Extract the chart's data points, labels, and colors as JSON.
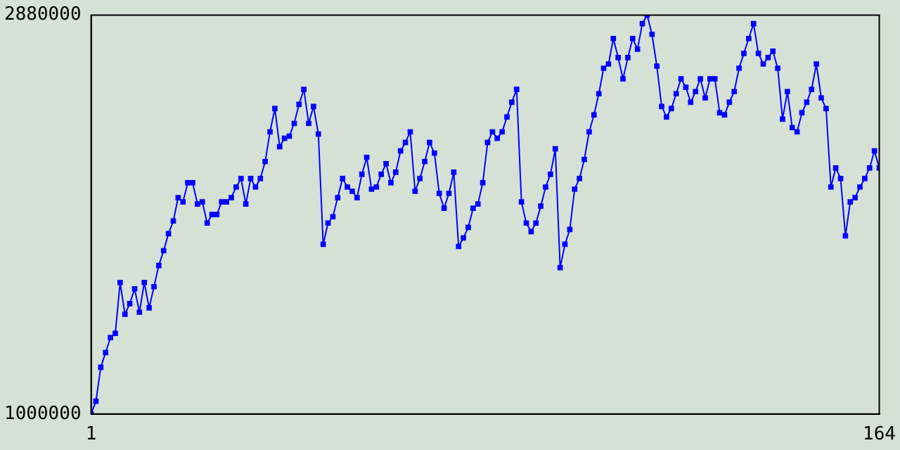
{
  "chart_data": {
    "type": "line",
    "marker": "square",
    "grid": false,
    "legend": false,
    "x": [
      1,
      2,
      3,
      4,
      5,
      6,
      7,
      8,
      9,
      10,
      11,
      12,
      13,
      14,
      15,
      16,
      17,
      18,
      19,
      20,
      21,
      22,
      23,
      24,
      25,
      26,
      27,
      28,
      29,
      30,
      31,
      32,
      33,
      34,
      35,
      36,
      37,
      38,
      39,
      40,
      41,
      42,
      43,
      44,
      45,
      46,
      47,
      48,
      49,
      50,
      51,
      52,
      53,
      54,
      55,
      56,
      57,
      58,
      59,
      60,
      61,
      62,
      63,
      64,
      65,
      66,
      67,
      68,
      69,
      70,
      71,
      72,
      73,
      74,
      75,
      76,
      77,
      78,
      79,
      80,
      81,
      82,
      83,
      84,
      85,
      86,
      87,
      88,
      89,
      90,
      91,
      92,
      93,
      94,
      95,
      96,
      97,
      98,
      99,
      100,
      101,
      102,
      103,
      104,
      105,
      106,
      107,
      108,
      109,
      110,
      111,
      112,
      113,
      114,
      115,
      116,
      117,
      118,
      119,
      120,
      121,
      122,
      123,
      124,
      125,
      126,
      127,
      128,
      129,
      130,
      131,
      132,
      133,
      134,
      135,
      136,
      137,
      138,
      139,
      140,
      141,
      142,
      143,
      144,
      145,
      146,
      147,
      148,
      149,
      150,
      151,
      152,
      153,
      154,
      155,
      156,
      157,
      158,
      159,
      160,
      161,
      162,
      163,
      164
    ],
    "series": [
      {
        "color": "#0000ff",
        "values": [
          1000000,
          1060000,
          1220000,
          1290000,
          1360000,
          1380000,
          1620000,
          1470000,
          1520000,
          1590000,
          1480000,
          1620000,
          1500000,
          1600000,
          1700000,
          1770000,
          1850000,
          1910000,
          2020000,
          2000000,
          2090000,
          2090000,
          1990000,
          2000000,
          1900000,
          1940000,
          1940000,
          2000000,
          2000000,
          2020000,
          2070000,
          2110000,
          1990000,
          2110000,
          2070000,
          2110000,
          2190000,
          2330000,
          2440000,
          2260000,
          2300000,
          2310000,
          2370000,
          2460000,
          2530000,
          2370000,
          2450000,
          2320000,
          1800000,
          1900000,
          1930000,
          2020000,
          2110000,
          2070000,
          2050000,
          2020000,
          2130000,
          2210000,
          2060000,
          2070000,
          2130000,
          2180000,
          2090000,
          2140000,
          2240000,
          2280000,
          2330000,
          2050000,
          2110000,
          2190000,
          2280000,
          2230000,
          2040000,
          1970000,
          2040000,
          2140000,
          1790000,
          1830000,
          1880000,
          1970000,
          1990000,
          2090000,
          2280000,
          2330000,
          2300000,
          2330000,
          2400000,
          2470000,
          2530000,
          2000000,
          1900000,
          1860000,
          1900000,
          1980000,
          2070000,
          2130000,
          2250000,
          1690000,
          1800000,
          1870000,
          2060000,
          2110000,
          2200000,
          2330000,
          2410000,
          2510000,
          2630000,
          2650000,
          2770000,
          2680000,
          2580000,
          2680000,
          2770000,
          2720000,
          2840000,
          2880000,
          2790000,
          2640000,
          2450000,
          2400000,
          2440000,
          2510000,
          2580000,
          2540000,
          2470000,
          2520000,
          2580000,
          2490000,
          2580000,
          2580000,
          2420000,
          2410000,
          2470000,
          2520000,
          2630000,
          2700000,
          2770000,
          2840000,
          2700000,
          2650000,
          2680000,
          2710000,
          2630000,
          2390000,
          2520000,
          2350000,
          2330000,
          2420000,
          2470000,
          2530000,
          2650000,
          2490000,
          2440000,
          2070000,
          2160000,
          2110000,
          1840000,
          2000000,
          2020000,
          2070000,
          2110000,
          2160000,
          2240000,
          2160000
        ]
      }
    ],
    "xlim": [
      1,
      164
    ],
    "xticks": [
      1,
      164
    ],
    "ylim": [
      1000000,
      2880000
    ],
    "yticks": [
      1000000,
      2880000
    ]
  }
}
